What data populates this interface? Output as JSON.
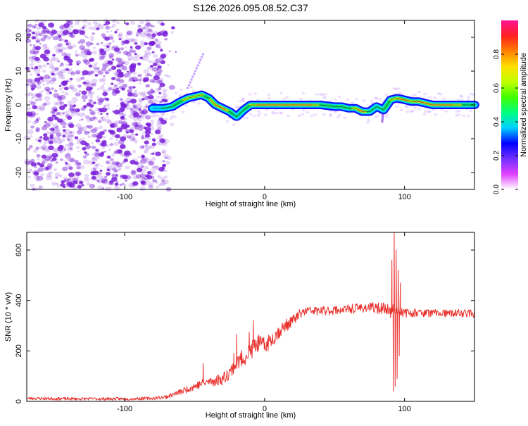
{
  "title": "S126.2026.095.08.52.C37",
  "colors": {
    "ridge_stops": [
      "#9b30ff",
      "#1010ff",
      "#00e5ff",
      "#00e060",
      "#c8ff00",
      "#ffc000",
      "#ff2040"
    ],
    "noise_color": "#7a1fd9",
    "line_color": "#e8302c",
    "colorbar_stops": [
      "#ffffff",
      "#e040ff",
      "#7030ff",
      "#0000ff",
      "#00d0ff",
      "#00ff80",
      "#40ff00",
      "#c0ff00",
      "#ffe000",
      "#ff8000",
      "#ff2020",
      "#ff1493"
    ]
  },
  "chart_data": [
    {
      "type": "heatmap",
      "name": "spectrogram",
      "title": "",
      "xlabel": "Height of straight line (km)",
      "ylabel": "Frequency (Hz)",
      "xlim": [
        -170,
        150
      ],
      "ylim": [
        -25,
        25
      ],
      "x_ticks": [
        -100,
        0,
        100
      ],
      "x_tick_labels": [
        "-100",
        "0",
        "100"
      ],
      "y_ticks": [
        -20,
        -10,
        0,
        10,
        20
      ],
      "y_tick_labels": [
        "-20",
        "-10",
        "0",
        "10",
        "20"
      ],
      "noise_region_x": [
        -170,
        -70
      ],
      "ridge": {
        "x": [
          -80,
          -72,
          -66,
          -60,
          -55,
          -50,
          -45,
          -40,
          -35,
          -30,
          -25,
          -20,
          -15,
          -10,
          -5,
          0,
          10,
          20,
          30,
          40,
          50,
          55,
          60,
          65,
          70,
          75,
          80,
          85,
          90,
          95,
          100,
          105,
          110,
          115,
          120,
          130,
          140,
          150
        ],
        "y": [
          -1,
          -1,
          -0.5,
          1,
          2,
          2.5,
          3,
          2,
          0,
          -1,
          -2,
          -3.5,
          -1.5,
          0,
          0,
          0,
          0,
          0,
          0,
          0,
          -0.5,
          -0.5,
          -1,
          -1,
          -2,
          -2,
          -0.5,
          -1.5,
          1.5,
          2,
          1.5,
          1,
          1,
          0.5,
          0,
          0,
          0,
          0
        ],
        "intensity": [
          0.3,
          0.45,
          0.5,
          0.55,
          0.65,
          0.6,
          0.6,
          0.55,
          0.75,
          0.9,
          0.55,
          0.45,
          0.5,
          0.6,
          0.75,
          0.85,
          0.9,
          0.85,
          0.9,
          0.55,
          0.5,
          0.55,
          0.5,
          0.7,
          0.85,
          0.5,
          0.45,
          0.5,
          0.6,
          0.75,
          0.85,
          0.7,
          0.85,
          0.75,
          0.9,
          0.85,
          0.6,
          0.5
        ]
      },
      "streaks": [
        {
          "x": [
            -55,
            -44
          ],
          "y": [
            5,
            15
          ]
        },
        {
          "x": [
            85,
            84
          ],
          "y": [
            -1,
            -5
          ]
        }
      ],
      "colorbar": {
        "label": "Normalized spectral amplitude",
        "range": [
          0,
          1
        ],
        "ticks": [
          0.0,
          0.2,
          0.4,
          0.6,
          0.8
        ],
        "tick_labels": [
          "0.0",
          "0.2",
          "0.4",
          "0.6",
          "0.8"
        ]
      }
    },
    {
      "type": "line",
      "name": "snr",
      "title": "",
      "xlabel": "Height of straight line (km)",
      "ylabel": "SNR (10 * v/v)",
      "xlim": [
        -170,
        150
      ],
      "ylim": [
        0,
        670
      ],
      "x_ticks": [
        -100,
        0,
        100
      ],
      "x_tick_labels": [
        "-100",
        "0",
        "100"
      ],
      "y_ticks": [
        0,
        200,
        400,
        600
      ],
      "y_tick_labels": [
        "0",
        "200",
        "400",
        "600"
      ],
      "series": [
        {
          "name": "SNR",
          "envelope_x": [
            -170,
            -140,
            -100,
            -80,
            -70,
            -60,
            -50,
            -45,
            -40,
            -35,
            -30,
            -25,
            -20,
            -15,
            -10,
            -5,
            0,
            5,
            10,
            15,
            20,
            25,
            30,
            40,
            50,
            60,
            70,
            80,
            88,
            90,
            92,
            93,
            95,
            98,
            100,
            110,
            120,
            130,
            140,
            150
          ],
          "envelope_y": [
            12,
            10,
            10,
            12,
            18,
            38,
            60,
            70,
            78,
            82,
            90,
            115,
            150,
            175,
            200,
            230,
            220,
            245,
            275,
            300,
            320,
            345,
            360,
            358,
            362,
            365,
            372,
            370,
            368,
            350,
            370,
            360,
            360,
            355,
            350,
            352,
            350,
            348,
            350,
            348
          ],
          "noise_amplitude": [
            6,
            6,
            6,
            6,
            8,
            12,
            16,
            18,
            20,
            22,
            24,
            28,
            32,
            36,
            38,
            36,
            34,
            32,
            28,
            24,
            22,
            20,
            18,
            18,
            18,
            18,
            20,
            22,
            22,
            22,
            20,
            20,
            18,
            18,
            18,
            16,
            16,
            16,
            16,
            16
          ],
          "spikes": [
            {
              "x": -44,
              "y": 150
            },
            {
              "x": -22,
              "y": 190
            },
            {
              "x": -20,
              "y": 265
            },
            {
              "x": -11,
              "y": 275
            },
            {
              "x": -8,
              "y": 320
            },
            {
              "x": 91,
              "y": 560
            },
            {
              "x": 92,
              "y": 40
            },
            {
              "x": 92.6,
              "y": 670
            },
            {
              "x": 93.3,
              "y": 60
            },
            {
              "x": 94,
              "y": 600
            },
            {
              "x": 94.7,
              "y": 90
            },
            {
              "x": 95.5,
              "y": 520
            },
            {
              "x": 96.2,
              "y": 180
            },
            {
              "x": 97,
              "y": 470
            }
          ]
        }
      ]
    }
  ]
}
